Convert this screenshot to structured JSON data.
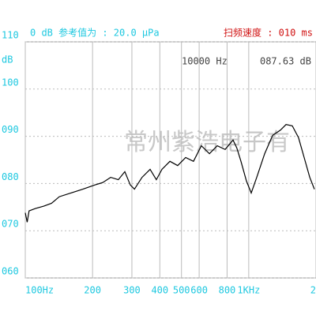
{
  "header": {
    "reference": "0 dB 参考值为 : 20.0 μPa",
    "sweep_speed": "扫频速度 : 010 ms",
    "readout_freq": "10000 Hz",
    "readout_level": "087.63 dB"
  },
  "watermark": "常州紫浩电子有",
  "chart_data": {
    "type": "line",
    "y_unit": "dB",
    "log_x": true,
    "grid": true,
    "color": "#000000",
    "xlim": [
      100,
      2000
    ],
    "ylim": [
      60,
      110
    ],
    "xticks": [
      {
        "value": 100,
        "label": "100Hz"
      },
      200,
      300,
      400,
      500,
      600,
      800,
      {
        "value": 1000,
        "label": "1KHz"
      },
      {
        "value": 2000,
        "label": "2"
      }
    ],
    "yticks": [
      {
        "value": 60,
        "label": "060"
      },
      {
        "value": 70,
        "label": "070"
      },
      {
        "value": 80,
        "label": "080"
      },
      {
        "value": 90,
        "label": "090"
      },
      100,
      110
    ],
    "x": [
      100,
      102,
      104,
      111,
      121,
      131,
      142,
      160,
      181,
      205,
      222,
      241,
      261,
      279,
      295,
      308,
      333,
      362,
      386,
      409,
      444,
      481,
      522,
      566,
      614,
      667,
      723,
      784,
      851,
      885,
      923,
      977,
      1026,
      1086,
      1178,
      1279,
      1387,
      1469,
      1567,
      1671,
      1770,
      1875,
      1968
    ],
    "values": [
      73.8,
      71.8,
      74.2,
      74.7,
      75.2,
      75.8,
      77.2,
      78.0,
      78.8,
      79.7,
      80.2,
      81.3,
      80.8,
      82.5,
      79.7,
      78.8,
      81.3,
      83.0,
      80.8,
      83.0,
      84.7,
      83.8,
      85.5,
      84.7,
      88.0,
      86.3,
      88.0,
      87.2,
      89.2,
      87.5,
      84.7,
      80.5,
      78.0,
      81.3,
      86.3,
      90.2,
      91.3,
      92.5,
      92.2,
      89.7,
      85.5,
      81.3,
      78.8
    ]
  }
}
